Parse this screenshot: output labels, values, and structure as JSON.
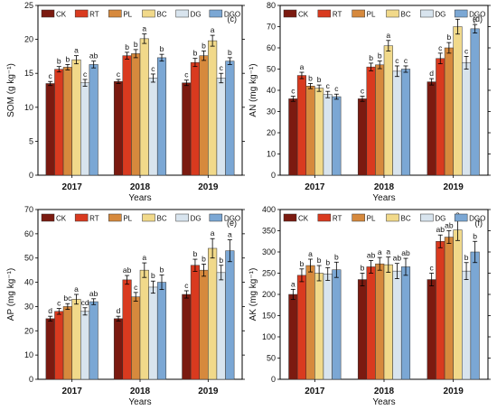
{
  "figure": {
    "series_names": [
      "CK",
      "RT",
      "PL",
      "BC",
      "DG",
      "DGO"
    ],
    "colors": [
      "#7b1a10",
      "#d93a1f",
      "#d6893d",
      "#f1d98a",
      "#d8e4ee",
      "#7ba7d4"
    ]
  },
  "chart_data": [
    {
      "type": "bar",
      "panel_label": "(c)",
      "ylabel": "SOM (g kg⁻¹)",
      "xlabel": "Years",
      "categories": [
        "2017",
        "2018",
        "2019"
      ],
      "ylim": [
        0,
        25
      ],
      "yticks": [
        "0",
        "5",
        "10",
        "15",
        "20",
        "25"
      ],
      "series": [
        {
          "name": "CK",
          "values": [
            13.5,
            13.8,
            13.6
          ],
          "errors": [
            0.3,
            0.3,
            0.4
          ],
          "letters": [
            "c",
            "c",
            "c"
          ]
        },
        {
          "name": "RT",
          "values": [
            15.6,
            17.6,
            16.6
          ],
          "errors": [
            0.4,
            0.5,
            0.6
          ],
          "letters": [
            "b",
            "b",
            "b"
          ]
        },
        {
          "name": "PL",
          "values": [
            15.9,
            17.9,
            17.6
          ],
          "errors": [
            0.4,
            0.6,
            0.7
          ],
          "letters": [
            "b",
            "b",
            "b"
          ]
        },
        {
          "name": "BC",
          "values": [
            17.0,
            20.1,
            19.8
          ],
          "errors": [
            0.6,
            0.7,
            0.8
          ],
          "letters": [
            "a",
            "a",
            "a"
          ]
        },
        {
          "name": "DG",
          "values": [
            13.6,
            14.3,
            14.3
          ],
          "errors": [
            0.5,
            0.6,
            0.7
          ],
          "letters": [
            "c",
            "c",
            "c"
          ]
        },
        {
          "name": "DGO",
          "values": [
            16.3,
            17.3,
            16.8
          ],
          "errors": [
            0.5,
            0.5,
            0.5
          ],
          "letters": [
            "ab",
            "b",
            "b"
          ]
        }
      ]
    },
    {
      "type": "bar",
      "panel_label": "(d)",
      "ylabel": "AN (mg kg⁻¹)",
      "xlabel": "Years",
      "categories": [
        "2017",
        "2018",
        "2019"
      ],
      "ylim": [
        0,
        80
      ],
      "yticks": [
        "0",
        "10",
        "20",
        "30",
        "40",
        "50",
        "60",
        "70",
        "80"
      ],
      "series": [
        {
          "name": "CK",
          "values": [
            36,
            36,
            44
          ],
          "errors": [
            1.2,
            1.2,
            1.5
          ],
          "letters": [
            "c",
            "c",
            "d"
          ]
        },
        {
          "name": "RT",
          "values": [
            47,
            51,
            55
          ],
          "errors": [
            1.5,
            1.8,
            2.5
          ],
          "letters": [
            "a",
            "b",
            "c"
          ]
        },
        {
          "name": "PL",
          "values": [
            42,
            52,
            60
          ],
          "errors": [
            1.2,
            1.8,
            2.5
          ],
          "letters": [
            "b",
            "b",
            "b"
          ]
        },
        {
          "name": "BC",
          "values": [
            41,
            61,
            70
          ],
          "errors": [
            1.5,
            2.5,
            3.5
          ],
          "letters": [
            "b",
            "a",
            "a"
          ]
        },
        {
          "name": "DG",
          "values": [
            38,
            49,
            53
          ],
          "errors": [
            1.5,
            2.5,
            3.0
          ],
          "letters": [
            "c",
            "c",
            "c"
          ]
        },
        {
          "name": "DGO",
          "values": [
            37,
            50,
            69
          ],
          "errors": [
            1.2,
            1.5,
            2.0
          ],
          "letters": [
            "c",
            "c",
            "a"
          ]
        }
      ]
    },
    {
      "type": "bar",
      "panel_label": "(e)",
      "ylabel": "AP (mg kg⁻¹)",
      "xlabel": "Years",
      "categories": [
        "2017",
        "2018",
        "2019"
      ],
      "ylim": [
        0,
        70
      ],
      "yticks": [
        "0",
        "10",
        "20",
        "30",
        "40",
        "50",
        "60",
        "70"
      ],
      "series": [
        {
          "name": "CK",
          "values": [
            25,
            25,
            35
          ],
          "errors": [
            1.0,
            1.0,
            1.5
          ],
          "letters": [
            "d",
            "d",
            "c"
          ]
        },
        {
          "name": "RT",
          "values": [
            28,
            41,
            47
          ],
          "errors": [
            1.2,
            1.8,
            2.5
          ],
          "letters": [
            "c",
            "ab",
            "b"
          ]
        },
        {
          "name": "PL",
          "values": [
            30,
            34,
            45
          ],
          "errors": [
            1.2,
            1.8,
            2.5
          ],
          "letters": [
            "bc",
            "c",
            "b"
          ]
        },
        {
          "name": "BC",
          "values": [
            33,
            45,
            54
          ],
          "errors": [
            2.0,
            3.0,
            4.0
          ],
          "letters": [
            "a",
            "a",
            "a"
          ]
        },
        {
          "name": "DG",
          "values": [
            28,
            38,
            44
          ],
          "errors": [
            1.5,
            2.5,
            3.0
          ],
          "letters": [
            "cd",
            "b",
            "b"
          ]
        },
        {
          "name": "DGO",
          "values": [
            32,
            40,
            53
          ],
          "errors": [
            1.2,
            3.0,
            4.5
          ],
          "letters": [
            "ab",
            "b",
            "a"
          ]
        }
      ]
    },
    {
      "type": "bar",
      "panel_label": "(f)",
      "ylabel": "AK (mg kg⁻¹)",
      "xlabel": "Years",
      "categories": [
        "2017",
        "2018",
        "2019"
      ],
      "ylim": [
        0,
        400
      ],
      "yticks": [
        "0",
        "50",
        "100",
        "150",
        "200",
        "250",
        "300",
        "350",
        "400"
      ],
      "series": [
        {
          "name": "CK",
          "values": [
            200,
            235,
            235
          ],
          "errors": [
            12,
            15,
            15
          ],
          "letters": [
            "a",
            "b",
            "c"
          ]
        },
        {
          "name": "RT",
          "values": [
            245,
            265,
            325
          ],
          "errors": [
            15,
            15,
            15
          ],
          "letters": [
            "b",
            "ab",
            "ab"
          ]
        },
        {
          "name": "PL",
          "values": [
            268,
            272,
            335
          ],
          "errors": [
            15,
            15,
            15
          ],
          "letters": [
            "a",
            "a",
            "ab"
          ]
        },
        {
          "name": "BC",
          "values": [
            250,
            270,
            352
          ],
          "errors": [
            18,
            18,
            25
          ],
          "letters": [
            "b",
            "a",
            "a"
          ]
        },
        {
          "name": "DG",
          "values": [
            248,
            255,
            255
          ],
          "errors": [
            15,
            18,
            20
          ],
          "letters": [
            "b",
            "ab",
            "b"
          ]
        },
        {
          "name": "DGO",
          "values": [
            258,
            265,
            300
          ],
          "errors": [
            18,
            20,
            25
          ],
          "letters": [
            "b",
            "ab",
            "b"
          ]
        }
      ]
    }
  ]
}
